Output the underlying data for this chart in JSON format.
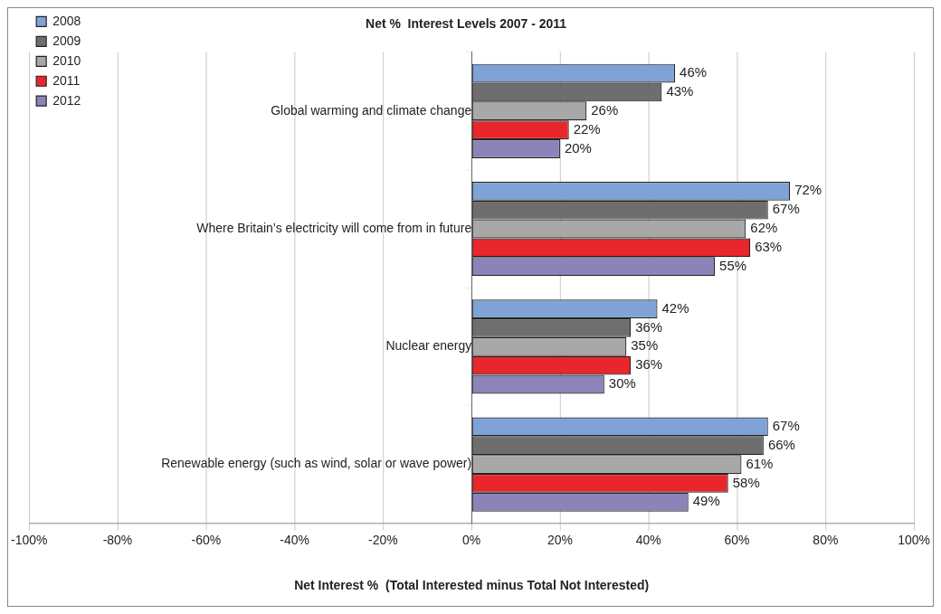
{
  "chart_data": {
    "type": "bar",
    "orientation": "horizontal",
    "title": "Net %  Interest Levels 2007 - 2011",
    "xlabel": "Net Interest %  (Total Interested minus Total Not Interested)",
    "categories": [
      "Global warming and climate change",
      "Where Britain’s electricity will come from in future",
      "Nuclear energy",
      "Renewable energy (such as wind, solar or wave power)"
    ],
    "series": [
      {
        "name": "2008",
        "color": "#7fa3d6",
        "values": [
          46,
          72,
          42,
          67
        ],
        "value_labels": [
          "46%",
          "72%",
          "42%",
          "67%"
        ]
      },
      {
        "name": "2009",
        "color": "#6e6e6e",
        "values": [
          43,
          67,
          36,
          66
        ],
        "value_labels": [
          "43%",
          "67%",
          "36%",
          "66%"
        ]
      },
      {
        "name": "2010",
        "color": "#a8a8a8",
        "values": [
          26,
          62,
          35,
          61
        ],
        "value_labels": [
          "26%",
          "62%",
          "35%",
          "61%"
        ]
      },
      {
        "name": "2011",
        "color": "#e8262b",
        "values": [
          22,
          63,
          36,
          58
        ],
        "value_labels": [
          "22%",
          "63%",
          "36%",
          "58%"
        ]
      },
      {
        "name": "2012",
        "color": "#8c83b8",
        "values": [
          20,
          55,
          30,
          49
        ],
        "value_labels": [
          "20%",
          "55%",
          "30%",
          "49%"
        ]
      }
    ],
    "xlim": [
      -100,
      100
    ],
    "xticks": [
      {
        "value": -100,
        "label": "-100%"
      },
      {
        "value": -80,
        "label": "-80%"
      },
      {
        "value": -60,
        "label": "-60%"
      },
      {
        "value": -40,
        "label": "-40%"
      },
      {
        "value": -20,
        "label": "-20%"
      },
      {
        "value": 0,
        "label": "0%"
      },
      {
        "value": 20,
        "label": "20%"
      },
      {
        "value": 40,
        "label": "40%"
      },
      {
        "value": 60,
        "label": "60%"
      },
      {
        "value": 80,
        "label": "80%"
      },
      {
        "value": 100,
        "label": "100%"
      }
    ],
    "grid": "x",
    "legend": "top left"
  }
}
